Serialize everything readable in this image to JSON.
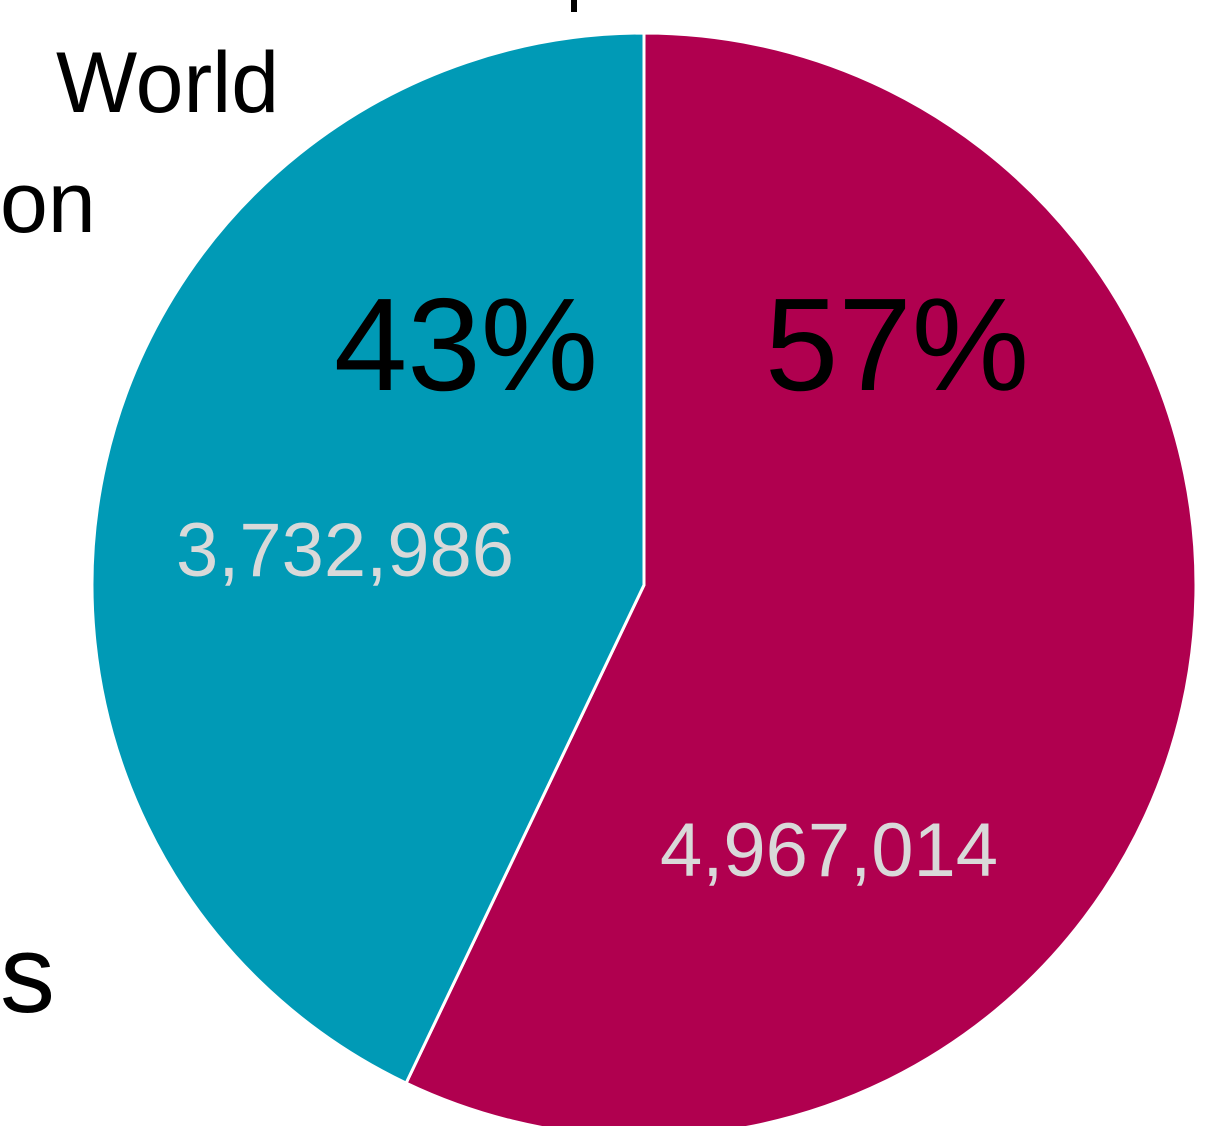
{
  "chart_data": {
    "type": "pie",
    "start_angle_deg": 0,
    "direction": "clockwise",
    "slices": [
      {
        "value": 4967014,
        "percent_label": "57%",
        "value_label": "4,967,014",
        "color": "#B0004F"
      },
      {
        "value": 3732986,
        "percent_label": "43%",
        "value_label": "3,732,986",
        "color": "#009AB6"
      }
    ],
    "percent_label_color": "#000000",
    "value_label_color": "#D9D9D9",
    "separator_color": "#FFFFFF"
  },
  "fragments": {
    "world": "World",
    "on": "on",
    "s": "s"
  }
}
